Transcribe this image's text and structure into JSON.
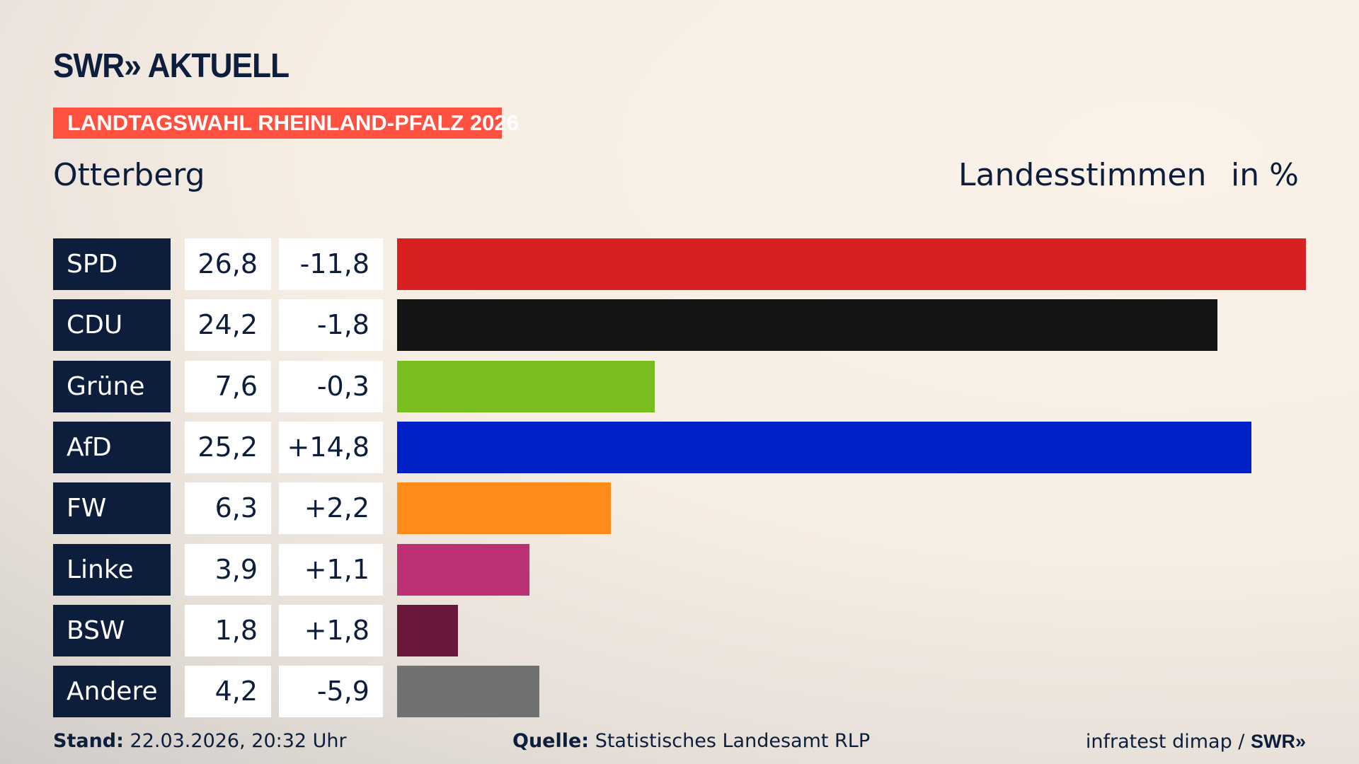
{
  "header": {
    "logo": "SWR» AKTUELL",
    "banner": "LANDTAGSWAHL RHEINLAND-PFALZ 2026",
    "region": "Otterberg",
    "metric": "Landesstimmen",
    "unit": "in %"
  },
  "chart_data": {
    "type": "bar",
    "title": "Landesstimmen",
    "xlabel": "",
    "ylabel": "in %",
    "xlim": [
      0,
      26.8
    ],
    "categories": [
      "SPD",
      "CDU",
      "Grüne",
      "AfD",
      "FW",
      "Linke",
      "BSW",
      "Andere"
    ],
    "values": [
      26.8,
      24.2,
      7.6,
      25.2,
      6.3,
      3.9,
      1.8,
      4.2
    ],
    "value_labels": [
      "26,8",
      "24,2",
      "7,6",
      "25,2",
      "6,3",
      "3,9",
      "1,8",
      "4,2"
    ],
    "diff_labels": [
      "-11,8",
      "-1,8",
      "-0,3",
      "+14,8",
      "+2,2",
      "+1,1",
      "+1,8",
      "-5,9"
    ],
    "diffs": [
      -11.8,
      -1.8,
      -0.3,
      14.8,
      2.2,
      1.1,
      1.8,
      -5.9
    ],
    "colors": [
      "#d81f22",
      "#151515",
      "#78be1e",
      "#0021c8",
      "#ff8c19",
      "#bc3173",
      "#6a173c",
      "#707172"
    ]
  },
  "footer": {
    "stand_label": "Stand:",
    "stand": "22.03.2026, 20:32 Uhr",
    "quelle_label": "Quelle:",
    "quelle": "Statistisches Landesamt RLP",
    "credit": "infratest dimap / ",
    "credit_logo": "SWR»"
  }
}
